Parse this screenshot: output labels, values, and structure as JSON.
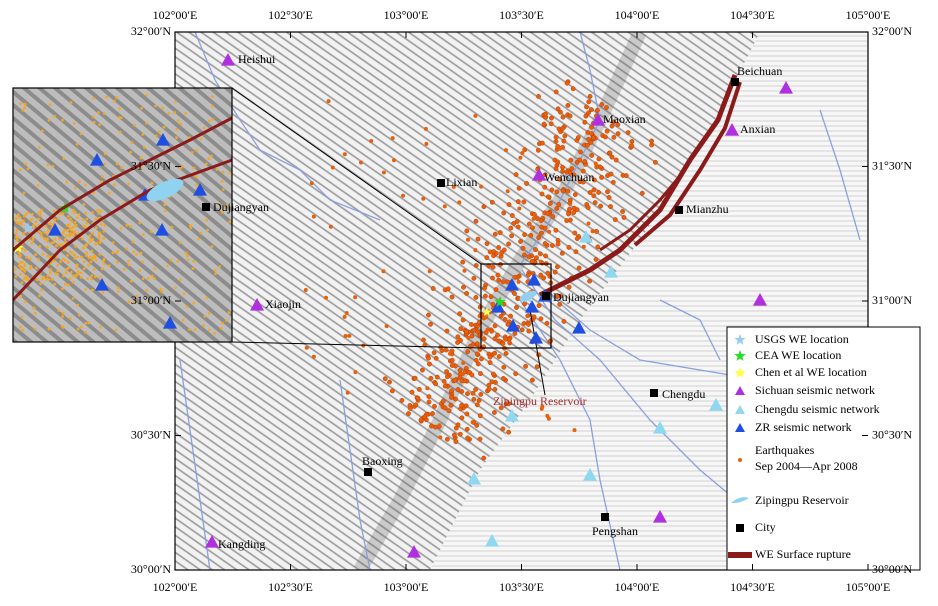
{
  "map": {
    "x_ticks": [
      "102°00′E",
      "102°30′E",
      "103°00′E",
      "103°30′E",
      "104°00′E",
      "104°30′E",
      "105°00′E"
    ],
    "y_ticks": [
      "32°00′N",
      "31°30′N",
      "31°00′N",
      "30°30′N",
      "30°00′N"
    ],
    "cities": [
      "Heishui",
      "Beichuan",
      "Maoxian",
      "Anxian",
      "Lixian",
      "Wenchuan",
      "Mianzhu",
      "Dujiangyan",
      "Xiaojin",
      "Chengdu",
      "Baoxing",
      "Pengshan",
      "Kangding"
    ],
    "reservoir_label": "Zipingpu Reservoir",
    "inset_label": "Dujiangyan",
    "legend": [
      {
        "label": "USGS WE location"
      },
      {
        "label": "CEA WE location"
      },
      {
        "label": "Chen et al WE location"
      },
      {
        "label": "Sichuan seismic network"
      },
      {
        "label": "Chengdu seismic  network"
      },
      {
        "label": "ZR seismic network"
      },
      {
        "label": "Earthquakes",
        "sublabel": "Sep 2004—Apr 2008"
      },
      {
        "label": "Zipingpu Reservoir"
      },
      {
        "label": "City"
      },
      {
        "label": "WE Surface rupture"
      }
    ]
  }
}
